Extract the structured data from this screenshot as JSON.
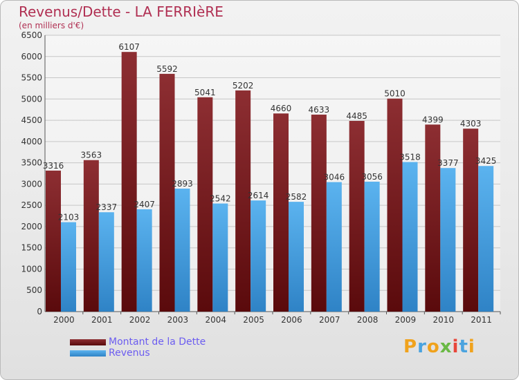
{
  "chart_data": {
    "type": "bar",
    "title": "Revenus/Dette - LA FERRIèRE",
    "subtitle": "(en milliers d'€)",
    "xlabel": "",
    "ylabel": "",
    "categories": [
      "2000",
      "2001",
      "2002",
      "2003",
      "2004",
      "2005",
      "2006",
      "2007",
      "2008",
      "2009",
      "2010",
      "2011"
    ],
    "series": [
      {
        "name": "Montant de la Dette",
        "color": "#7a1a1c",
        "values": [
          3316,
          3563,
          6107,
          5592,
          5041,
          5202,
          4660,
          4633,
          4485,
          5010,
          4399,
          4303
        ]
      },
      {
        "name": "Revenus",
        "color": "#4ea6e6",
        "values": [
          2103,
          2337,
          2407,
          2893,
          2542,
          2614,
          2582,
          3046,
          3056,
          3518,
          3377,
          3425
        ]
      }
    ],
    "ylim": [
      0,
      6500
    ],
    "yticks": [
      0,
      500,
      1000,
      1500,
      2000,
      2500,
      3000,
      3500,
      4000,
      4500,
      5000,
      5500,
      6000,
      6500
    ],
    "grid": true,
    "legend_position": "bottom-left"
  },
  "brand": {
    "letters": [
      "P",
      "r",
      "o",
      "x",
      "i",
      "t",
      "i"
    ],
    "colors": [
      "#f0a21c",
      "#4aa3df",
      "#f0a21c",
      "#6ab945",
      "#e8463a",
      "#4aa3df",
      "#f0a21c"
    ]
  }
}
